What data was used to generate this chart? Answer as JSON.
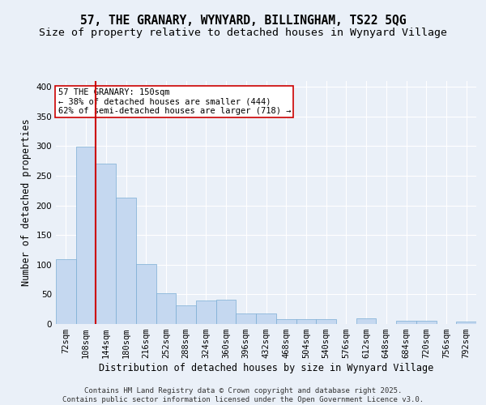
{
  "title": "57, THE GRANARY, WYNYARD, BILLINGHAM, TS22 5QG",
  "subtitle": "Size of property relative to detached houses in Wynyard Village",
  "xlabel": "Distribution of detached houses by size in Wynyard Village",
  "ylabel": "Number of detached properties",
  "bar_values": [
    109,
    299,
    270,
    213,
    101,
    52,
    32,
    40,
    41,
    18,
    18,
    8,
    8,
    8,
    0,
    10,
    0,
    5,
    5,
    0,
    4
  ],
  "bar_labels": [
    "72sqm",
    "108sqm",
    "144sqm",
    "180sqm",
    "216sqm",
    "252sqm",
    "288sqm",
    "324sqm",
    "360sqm",
    "396sqm",
    "432sqm",
    "468sqm",
    "504sqm",
    "540sqm",
    "576sqm",
    "612sqm",
    "648sqm",
    "684sqm",
    "720sqm",
    "756sqm",
    "792sqm"
  ],
  "bar_color": "#c5d8f0",
  "bar_edge_color": "#7aadd4",
  "highlight_color": "#cc0000",
  "vline_bar_index": 2,
  "annotation_text": "57 THE GRANARY: 150sqm\n← 38% of detached houses are smaller (444)\n62% of semi-detached houses are larger (718) →",
  "annotation_box_color": "#ffffff",
  "annotation_box_edge": "#cc0000",
  "ylim": [
    0,
    410
  ],
  "yticks": [
    0,
    50,
    100,
    150,
    200,
    250,
    300,
    350,
    400
  ],
  "background_color": "#eaf0f8",
  "grid_color": "#ffffff",
  "footer": "Contains HM Land Registry data © Crown copyright and database right 2025.\nContains public sector information licensed under the Open Government Licence v3.0.",
  "title_fontsize": 10.5,
  "subtitle_fontsize": 9.5,
  "axis_label_fontsize": 8.5,
  "tick_fontsize": 7.5,
  "annotation_fontsize": 7.5,
  "footer_fontsize": 6.5
}
